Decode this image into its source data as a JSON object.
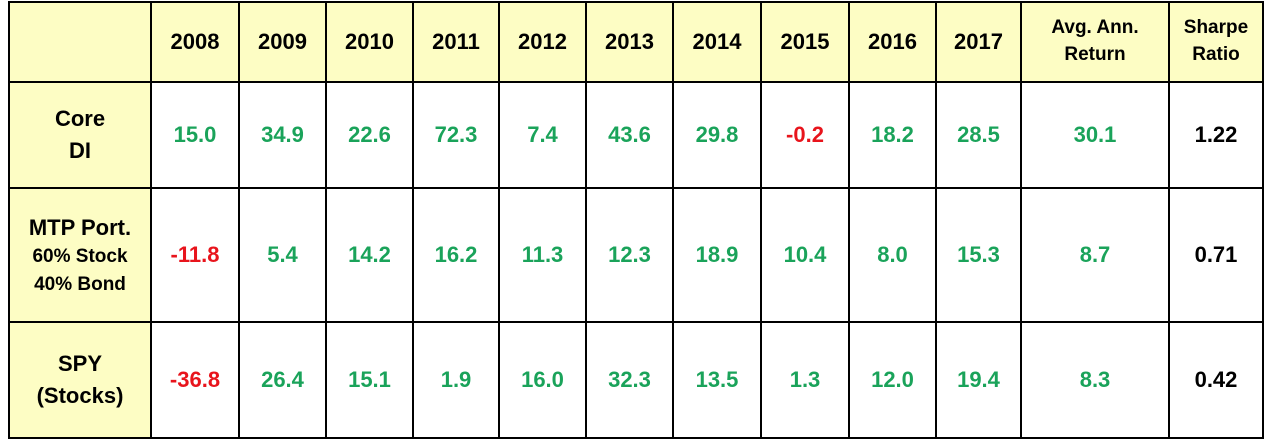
{
  "table": {
    "header": [
      "2008",
      "2009",
      "2010",
      "2011",
      "2012",
      "2013",
      "2014",
      "2015",
      "2016",
      "2017",
      [
        "Avg. Ann.",
        "Return"
      ],
      [
        "Sharpe",
        "Ratio"
      ]
    ],
    "rows": [
      {
        "label": [
          "Core",
          "DI"
        ],
        "cells": [
          "15.0",
          "34.9",
          "22.6",
          "72.3",
          "7.4",
          "43.6",
          "29.8",
          "-0.2",
          "18.2",
          "28.5",
          "30.1",
          "1.22"
        ]
      },
      {
        "label": [
          "MTP Port.",
          "60% Stock",
          "40% Bond"
        ],
        "cells": [
          "-11.8",
          "5.4",
          "14.2",
          "16.2",
          "11.3",
          "12.3",
          "18.9",
          "10.4",
          "8.0",
          "15.3",
          "8.7",
          "0.71"
        ]
      },
      {
        "label": [
          "SPY",
          "(Stocks)"
        ],
        "cells": [
          "-36.8",
          "26.4",
          "15.1",
          "1.9",
          "16.0",
          "32.3",
          "13.5",
          "1.3",
          "12.0",
          "19.4",
          "8.3",
          "0.42"
        ]
      }
    ]
  }
}
